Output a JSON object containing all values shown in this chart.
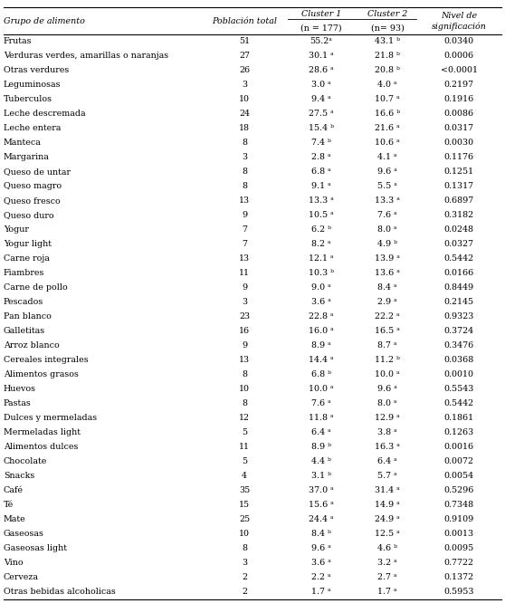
{
  "col_headers_row1": [
    "Grupo de alimento",
    "Población total",
    "Cluster 1",
    "Cluster 2",
    "Nivel de"
  ],
  "col_headers_row2": [
    "",
    "",
    "(n = 177)",
    "(n= 93)",
    "significación"
  ],
  "rows": [
    [
      "Frutas",
      "51",
      "55.2ᵃ",
      "43.1 ᵇ",
      "0.0340"
    ],
    [
      "Verduras verdes, amarillas o naranjas",
      "27",
      "30.1 ᵃ",
      "21.8 ᵇ",
      "0.0006"
    ],
    [
      "Otras verdures",
      "26",
      "28.6 ᵃ",
      "20.8 ᵇ",
      "<0.0001"
    ],
    [
      "Leguminosas",
      "3",
      "3.0 ᵃ",
      "4.0 ᵃ",
      "0.2197"
    ],
    [
      "Tuberculos",
      "10",
      "9.4 ᵃ",
      "10.7 ᵃ",
      "0.1916"
    ],
    [
      "Leche descremada",
      "24",
      "27.5 ᵃ",
      "16.6 ᵇ",
      "0.0086"
    ],
    [
      "Leche entera",
      "18",
      "15.4 ᵇ",
      "21.6 ᵃ",
      "0.0317"
    ],
    [
      "Manteca",
      "8",
      "7.4 ᵇ",
      "10.6 ᵃ",
      "0.0030"
    ],
    [
      "Margarina",
      "3",
      "2.8 ᵃ",
      "4.1 ᵃ",
      "0.1176"
    ],
    [
      "Queso de untar",
      "8",
      "6.8 ᵃ",
      "9.6 ᵃ",
      "0.1251"
    ],
    [
      "Queso magro",
      "8",
      "9.1 ᵃ",
      "5.5 ᵃ",
      "0.1317"
    ],
    [
      "Queso fresco",
      "13",
      "13.3 ᵃ",
      "13.3 ᵃ",
      "0.6897"
    ],
    [
      "Queso duro",
      "9",
      "10.5 ᵃ",
      "7.6 ᵃ",
      "0.3182"
    ],
    [
      "Yogur",
      "7",
      "6.2 ᵇ",
      "8.0 ᵃ",
      "0.0248"
    ],
    [
      "Yogur light",
      "7",
      "8.2 ᵃ",
      "4.9 ᵇ",
      "0.0327"
    ],
    [
      "Carne roja",
      "13",
      "12.1 ᵃ",
      "13.9 ᵃ",
      "0.5442"
    ],
    [
      "Fiambres",
      "11",
      "10.3 ᵇ",
      "13.6 ᵃ",
      "0.0166"
    ],
    [
      "Carne de pollo",
      "9",
      "9.0 ᵃ",
      "8.4 ᵃ",
      "0.8449"
    ],
    [
      "Pescados",
      "3",
      "3.6 ᵃ",
      "2.9 ᵃ",
      "0.2145"
    ],
    [
      "Pan blanco",
      "23",
      "22.8 ᵃ",
      "22.2 ᵃ",
      "0.9323"
    ],
    [
      "Galletitas",
      "16",
      "16.0 ᵃ",
      "16.5 ᵃ",
      "0.3724"
    ],
    [
      "Arroz blanco",
      "9",
      "8.9 ᵃ",
      "8.7 ᵃ",
      "0.3476"
    ],
    [
      "Cereales integrales",
      "13",
      "14.4 ᵃ",
      "11.2 ᵇ",
      "0.0368"
    ],
    [
      "Alimentos grasos",
      "8",
      "6.8 ᵇ",
      "10.0 ᵃ",
      "0.0010"
    ],
    [
      "Huevos",
      "10",
      "10.0 ᵃ",
      "9.6 ᵃ",
      "0.5543"
    ],
    [
      "Pastas",
      "8",
      "7.6 ᵃ",
      "8.0 ᵃ",
      "0.5442"
    ],
    [
      "Dulces y mermeladas",
      "12",
      "11.8 ᵃ",
      "12.9 ᵃ",
      "0.1861"
    ],
    [
      "Mermeladas light",
      "5",
      "6.4 ᵃ",
      "3.8 ᵃ",
      "0.1263"
    ],
    [
      "Alimentos dulces",
      "11",
      "8.9 ᵇ",
      "16.3 ᵃ",
      "0.0016"
    ],
    [
      "Chocolate",
      "5",
      "4.4 ᵇ",
      "6.4 ᵃ",
      "0.0072"
    ],
    [
      "Snacks",
      "4",
      "3.1 ᵇ",
      "5.7 ᵃ",
      "0.0054"
    ],
    [
      "Café",
      "35",
      "37.0 ᵃ",
      "31.4 ᵃ",
      "0.5296"
    ],
    [
      "Té",
      "15",
      "15.6 ᵃ",
      "14.9 ᵃ",
      "0.7348"
    ],
    [
      "Mate",
      "25",
      "24.4 ᵃ",
      "24.9 ᵃ",
      "0.9109"
    ],
    [
      "Gaseosas",
      "10",
      "8.4 ᵇ",
      "12.5 ᵃ",
      "0.0013"
    ],
    [
      "Gaseosas light",
      "8",
      "9.6 ᵃ",
      "4.6 ᵇ",
      "0.0095"
    ],
    [
      "Vino",
      "3",
      "3.6 ᵃ",
      "3.2 ᵃ",
      "0.7722"
    ],
    [
      "Cerveza",
      "2",
      "2.2 ᵃ",
      "2.7 ᵃ",
      "0.1372"
    ],
    [
      "Otras bebidas alcoholicas",
      "2",
      "1.7 ᵃ",
      "1.7 ᵃ",
      "0.5953"
    ]
  ],
  "text_color": "#000000",
  "line_color": "#000000",
  "fontsize": 6.8,
  "header_fontsize": 6.8
}
